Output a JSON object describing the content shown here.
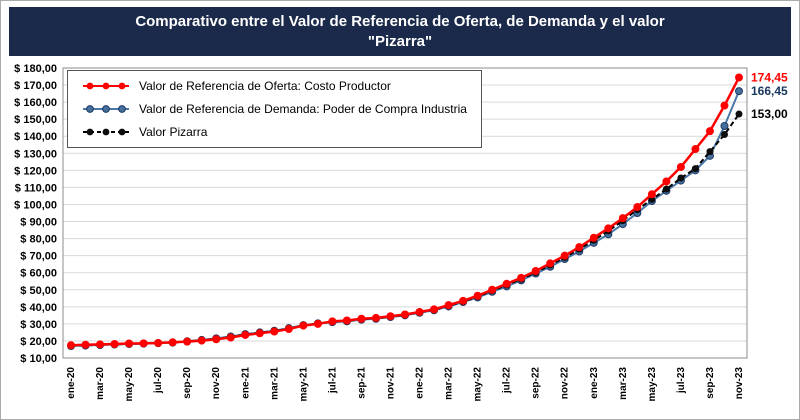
{
  "title": {
    "line1": "Comparativo entre el Valor de Referencia de Oferta, de Demanda y el valor",
    "line2": "\"Pizarra\""
  },
  "colors": {
    "title_bg": "#1B2A4A",
    "gridline": "#D9D9D9",
    "plot_border": "#8C8C8C"
  },
  "chart_data": {
    "type": "line",
    "title": "Comparativo entre el Valor de Referencia de Oferta, de Demanda y el valor \"Pizarra\"",
    "grid": true,
    "legend_position": "top-left",
    "x": [
      "ene-20",
      "feb-20",
      "mar-20",
      "abr-20",
      "may-20",
      "jun-20",
      "jul-20",
      "ago-20",
      "sep-20",
      "oct-20",
      "nov-20",
      "dic-20",
      "ene-21",
      "feb-21",
      "mar-21",
      "abr-21",
      "may-21",
      "jun-21",
      "jul-21",
      "ago-21",
      "sep-21",
      "oct-21",
      "nov-21",
      "dic-21",
      "ene-22",
      "feb-22",
      "mar-22",
      "abr-22",
      "may-22",
      "jun-22",
      "jul-22",
      "ago-22",
      "sep-22",
      "oct-22",
      "nov-22",
      "dic-22",
      "ene-23",
      "feb-23",
      "mar-23",
      "abr-23",
      "may-23",
      "jun-23",
      "jul-23",
      "ago-23",
      "sep-23",
      "oct-23",
      "nov-23"
    ],
    "x_ticks_shown": [
      "ene-20",
      "mar-20",
      "may-20",
      "jul-20",
      "sep-20",
      "nov-20",
      "ene-21",
      "mar-21",
      "may-21",
      "jul-21",
      "sep-21",
      "nov-21",
      "ene-22",
      "mar-22",
      "may-22",
      "jul-22",
      "sep-22",
      "nov-22",
      "ene-23",
      "mar-23",
      "may-23",
      "jul-23",
      "sep-23",
      "nov-23"
    ],
    "y_axis": {
      "min": 10,
      "max": 180,
      "step": 10,
      "tick_prefix": "$ ",
      "tick_suffix": ",00"
    },
    "series": [
      {
        "name": "Valor de Referencia de Oferta: Costo Productor",
        "color": "#FF0000",
        "marker_color": "#FF0000",
        "line_style": "solid",
        "end_label": "174,45",
        "end_label_color": "#FF0000",
        "values": [
          17.5,
          17.8,
          18.0,
          18.2,
          18.5,
          18.6,
          18.8,
          19.2,
          19.6,
          20.2,
          21.0,
          22.0,
          23.5,
          24.5,
          25.5,
          27.0,
          29.0,
          30.0,
          31.5,
          32.0,
          33.0,
          33.5,
          34.5,
          35.5,
          37.0,
          38.5,
          41.0,
          43.5,
          46.5,
          50.0,
          53.5,
          57.0,
          61.0,
          65.5,
          70.0,
          75.0,
          80.5,
          86.0,
          92.0,
          98.5,
          106.0,
          113.5,
          122.0,
          132.5,
          143.0,
          158.0,
          174.45
        ]
      },
      {
        "name": "Valor de Referencia de Demanda: Poder de Compra Industria",
        "color": "#4878A8",
        "marker_color": "#44719C",
        "marker_outline": "#1F3864",
        "line_style": "solid",
        "end_label": "166,45",
        "end_label_color": "#17375E",
        "values": [
          17.0,
          17.3,
          17.6,
          17.9,
          18.2,
          18.4,
          18.7,
          19.0,
          19.8,
          20.6,
          21.5,
          22.6,
          24.0,
          25.0,
          26.0,
          27.5,
          29.3,
          30.3,
          31.0,
          31.5,
          32.5,
          33.0,
          34.0,
          35.0,
          36.5,
          38.0,
          40.2,
          42.8,
          45.5,
          48.8,
          52.0,
          55.5,
          59.5,
          63.5,
          68.0,
          72.5,
          77.5,
          82.5,
          88.5,
          95.0,
          102.0,
          108.0,
          114.0,
          120.0,
          128.5,
          146.0,
          166.45
        ]
      },
      {
        "name": "Valor Pizarra",
        "color": "#000000",
        "marker_color": "#0D0D0D",
        "line_style": "dashed",
        "end_label": "153,00",
        "end_label_color": "#000000",
        "values": [
          17.2,
          17.5,
          17.8,
          18.0,
          18.3,
          18.5,
          18.8,
          19.1,
          19.7,
          20.4,
          21.2,
          22.3,
          23.8,
          24.8,
          25.8,
          27.2,
          29.1,
          30.1,
          31.2,
          31.7,
          32.8,
          33.2,
          34.2,
          35.2,
          36.8,
          38.2,
          40.6,
          43.1,
          46.0,
          49.4,
          52.8,
          56.2,
          60.2,
          64.5,
          69.0,
          73.8,
          79.0,
          84.5,
          90.5,
          97.0,
          103.0,
          109.0,
          115.5,
          121.0,
          131.0,
          141.0,
          153.0
        ]
      }
    ]
  }
}
